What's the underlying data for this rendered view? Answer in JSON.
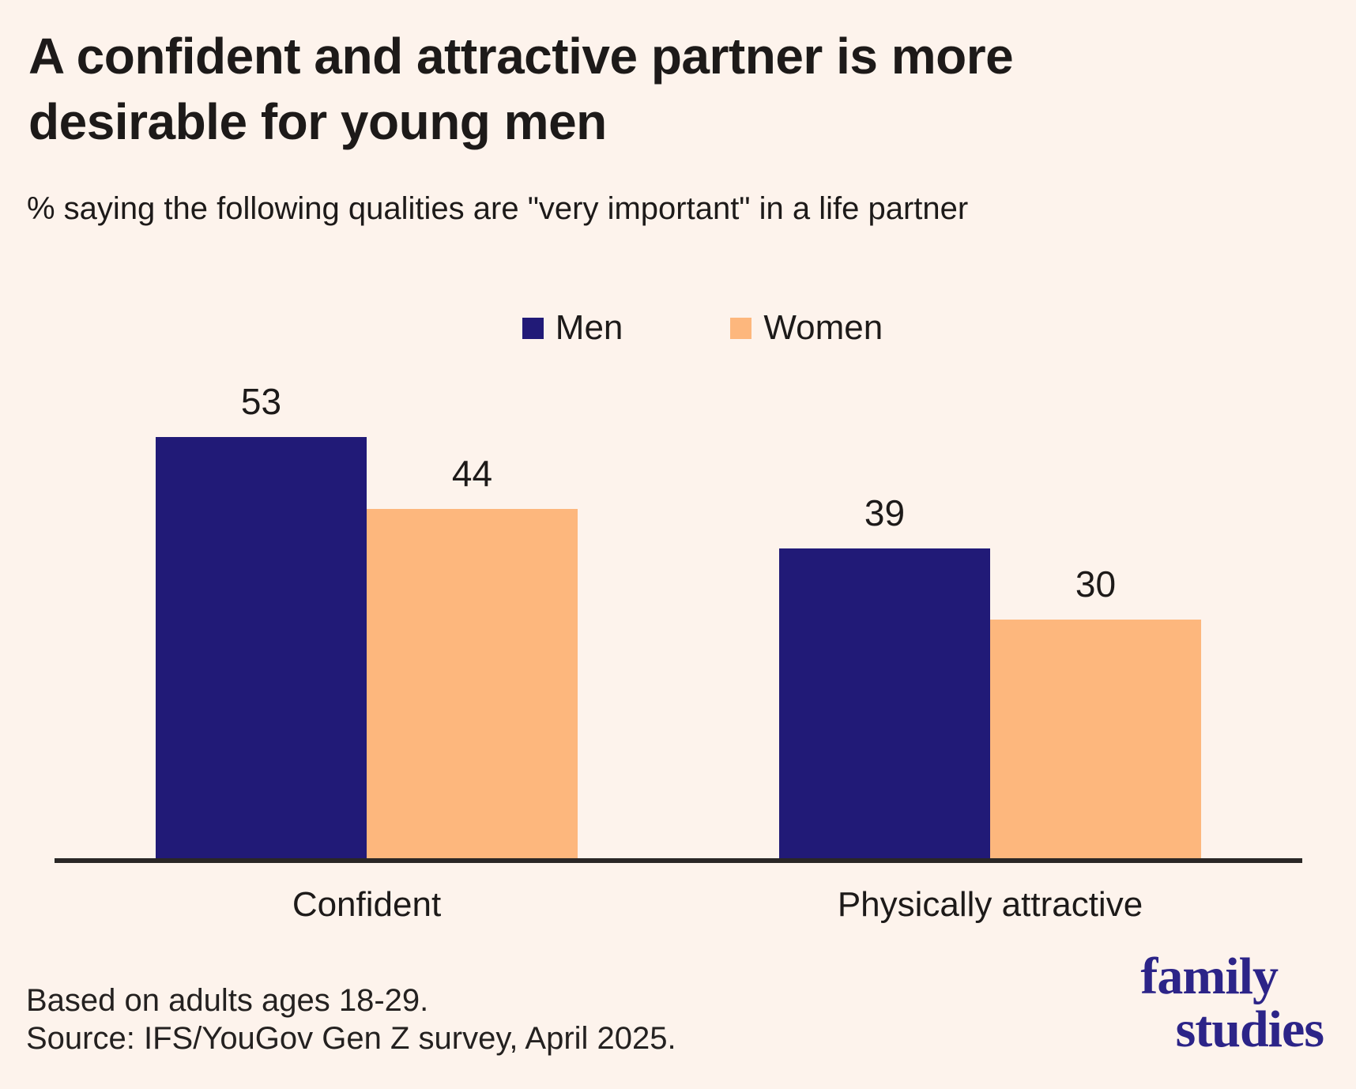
{
  "title": "A confident and attractive partner is more desirable for young men",
  "subtitle": "% saying the following qualities are \"very important\" in a life partner",
  "chart_data": {
    "type": "bar",
    "categories": [
      "Confident",
      "Physically attractive"
    ],
    "series": [
      {
        "name": "Men",
        "values": [
          53,
          39
        ],
        "color": "#211a77"
      },
      {
        "name": "Women",
        "values": [
          44,
          30
        ],
        "color": "#fdb77d"
      }
    ],
    "value_labels": [
      [
        53,
        39
      ],
      [
        44,
        30
      ]
    ],
    "ylim": [
      0,
      60
    ],
    "grid": false,
    "legend_position": "top-center",
    "xlabel": "",
    "ylabel": ""
  },
  "footer": {
    "note": "Based on adults ages 18-29.",
    "source": "Source: IFS/YouGov Gen Z survey, April 2025."
  },
  "logo": {
    "line1": "family",
    "line2": "studies",
    "color": "#2c2488"
  },
  "colors": {
    "background": "#fdf3ec",
    "text": "#1d1a19",
    "axis": "#2a2726"
  }
}
